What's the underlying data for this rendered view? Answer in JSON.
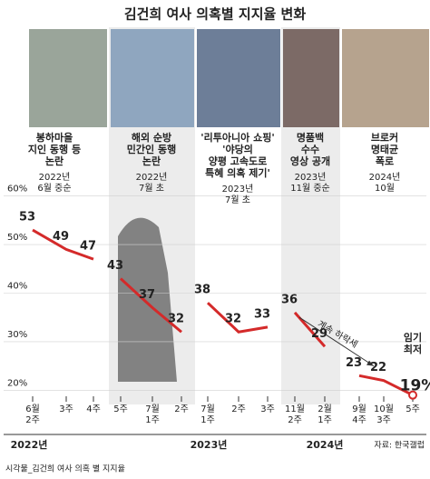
{
  "title": "김건희 여사 의혹별 지지율 변화",
  "years": [
    "2022년",
    "2023년",
    "2024년"
  ],
  "source": "자료: 한국갤럽",
  "footer": "시각물_김건희 여사 의혹 별 지지율",
  "chart_data": [
    {
      "type": "line",
      "color": "#d42a2a",
      "ylim": [
        18,
        62
      ],
      "yticks": [
        {
          "value": 20,
          "label": "20%"
        },
        {
          "value": 30,
          "label": "30%"
        },
        {
          "value": 40,
          "label": "40%"
        },
        {
          "value": 50,
          "label": "50%"
        },
        {
          "value": 60,
          "label": "60%"
        }
      ],
      "caption": [
        "봉하마을",
        "지인 동행 등",
        "논란"
      ],
      "date": [
        "2022년",
        "6월 중순"
      ],
      "categories": [
        "6월 2주",
        "3주",
        "4주"
      ],
      "values": [
        53,
        49,
        47
      ]
    },
    {
      "type": "line",
      "color": "#d42a2a",
      "ylim": [
        18,
        62
      ],
      "caption": [
        "해외 순방",
        "민간인 동행",
        "논란"
      ],
      "date": [
        "2022년",
        "7월 초"
      ],
      "categories": [
        "5주",
        "7월 1주",
        "2주"
      ],
      "values": [
        43,
        37,
        32
      ]
    },
    {
      "type": "line",
      "color": "#d42a2a",
      "ylim": [
        18,
        62
      ],
      "caption": [
        "'리투아니아 쇼핑'",
        "'야당의",
        "양평 고속도로",
        "특혜 의혹 제기'"
      ],
      "date": [
        "2023년",
        "7월 초"
      ],
      "categories": [
        "7월 1주",
        "2주",
        "3주"
      ],
      "values": [
        38,
        32,
        33
      ]
    },
    {
      "type": "line",
      "color": "#d42a2a",
      "ylim": [
        18,
        62
      ],
      "caption": [
        "명품백",
        "수수",
        "영상 공개"
      ],
      "date": [
        "2023년",
        "11월 중순"
      ],
      "categories": [
        "11월 2주",
        "2월 1주"
      ],
      "values": [
        36,
        29
      ],
      "annotation": "계속 하락세"
    },
    {
      "type": "line",
      "color": "#d42a2a",
      "ylim": [
        18,
        62
      ],
      "caption": [
        "브로커",
        "명태균",
        "폭로"
      ],
      "date": [
        "2024년",
        "10월"
      ],
      "categories": [
        "9월 4주",
        "10월 3주",
        "5주"
      ],
      "values": [
        23,
        22,
        19
      ],
      "value_labels": [
        "23",
        "22",
        "19%"
      ],
      "annotation": "임기 최저"
    }
  ]
}
